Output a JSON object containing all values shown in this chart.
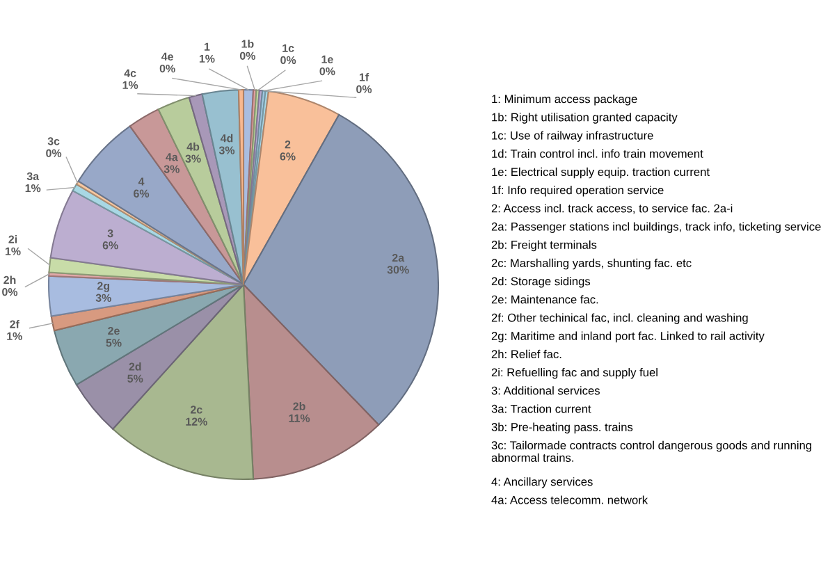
{
  "chart_data": {
    "type": "pie",
    "categories": [
      "1",
      "1b",
      "1c",
      null,
      "1e",
      "1f",
      "2",
      "2a",
      "2b",
      "2c",
      "2d",
      "2e",
      "2f",
      "2g",
      "2h",
      "2i",
      "3",
      "3a",
      "3c",
      "4",
      "4a",
      "4b",
      "4c",
      "4d",
      "4e"
    ],
    "values": [
      0.8,
      0.25,
      0.25,
      0.25,
      0.25,
      0.25,
      6.1,
      29.65,
      11.4,
      12.5,
      4.7,
      4.8,
      1.2,
      3.3,
      0.3,
      1.2,
      5.8,
      0.6,
      0.3,
      6.2,
      2.7,
      2.7,
      1.1,
      3.0,
      0.4
    ],
    "value_labels": [
      "1%",
      "0%",
      "0%",
      null,
      "0%",
      "0%",
      "6%",
      "30%",
      "11%",
      "12%",
      "5%",
      "5%",
      "1%",
      "3%",
      "0%",
      "1%",
      "6%",
      "1%",
      "0%",
      "6%",
      "3%",
      "3%",
      "1%",
      "3%",
      "0%"
    ],
    "colors": [
      "#a9bde0",
      "#e0a0a0",
      "#c0d8a0",
      "#b8a8d0",
      "#a0c8e0",
      "#a8d8e8",
      "#f9c09a",
      "#8e9db8",
      "#b88e8e",
      "#a8b890",
      "#9a90a8",
      "#8aa8b0",
      "#d89a80",
      "#a8bce0",
      "#e0a8a8",
      "#c8dca8",
      "#bcaed0",
      "#a8d8e4",
      "#f8c8a0",
      "#98a8c8",
      "#c89898",
      "#b8cc9c",
      "#a898b8",
      "#98c0d0",
      "#f8b890"
    ],
    "legend": false,
    "annotations": [
      "1: Minimum access package",
      "1b: Right utilisation granted capacity",
      "1c: Use of railway infrastructure",
      "1d: Train control incl. info train movement",
      "1e: Electrical supply equip. traction current",
      "1f: Info required operation service",
      "2: Access incl. track access, to service fac. 2a-i",
      "2a: Passenger stations incl buildings, track info, ticketing service",
      "2b: Freight terminals",
      "2c: Marshalling yards, shunting fac. etc",
      "2d: Storage sidings",
      "2e: Maintenance fac.",
      "2f: Other techinical fac, incl. cleaning and washing",
      "2g: Maritime and inland port fac. Linked to rail activity",
      "2h: Relief fac.",
      "2i: Refuelling fac and supply fuel",
      "3: Additional services",
      "3a: Traction current",
      "3b: Pre-heating pass. trains",
      "3c: Tailormade contracts control dangerous goods and running abnormal trains.",
      "4: Ancillary services",
      "4a: Access telecomm. network"
    ]
  }
}
